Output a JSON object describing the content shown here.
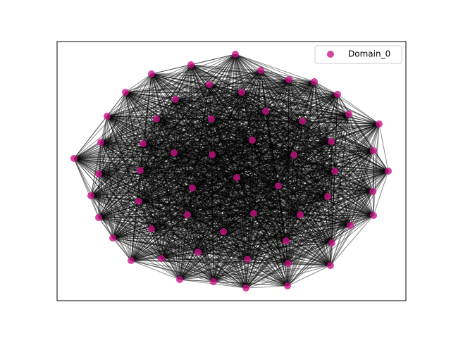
{
  "chart_data": {
    "type": "network",
    "series": [
      {
        "name": "Domain_0",
        "color": "#c71585"
      }
    ]
  }
}
